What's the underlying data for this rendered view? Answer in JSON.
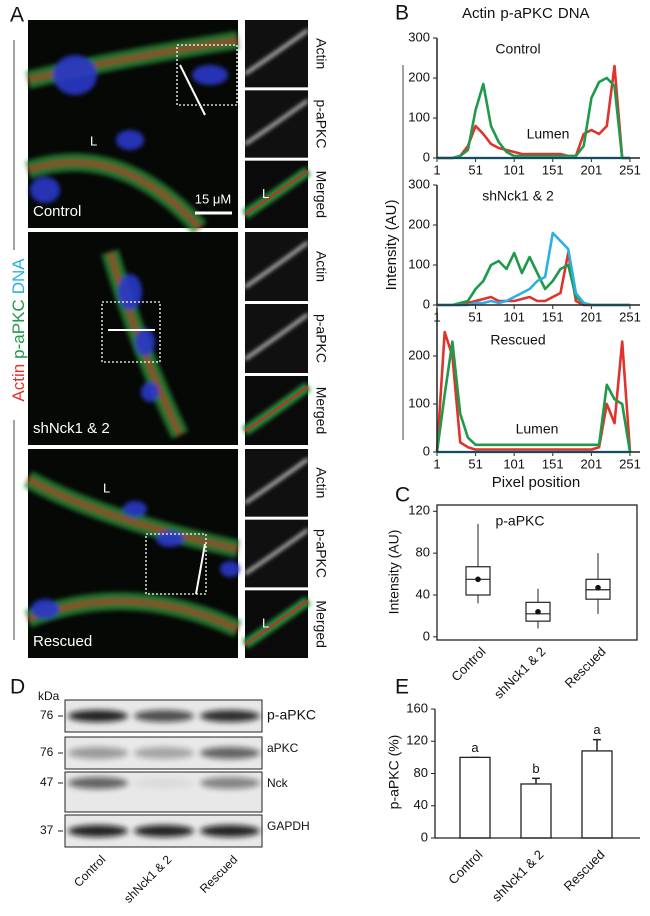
{
  "panel_labels": [
    "A",
    "B",
    "C",
    "D",
    "E"
  ],
  "micrographs": {
    "legend": [
      "Actin",
      "p-aPKC",
      "DNA"
    ],
    "rows": [
      {
        "condition": "Control",
        "lumen": "L",
        "scale_bar": "15 μM",
        "channels": [
          "Actin",
          "p-aPKC",
          "Merged"
        ],
        "inset_lumen": "L"
      },
      {
        "condition": "shNck1 & 2",
        "channels": [
          "Actin",
          "p-aPKC",
          "Merged"
        ]
      },
      {
        "condition": "Rescued",
        "lumen": "L",
        "channels": [
          "Actin",
          "p-aPKC",
          "Merged"
        ],
        "inset_lumen": "L"
      }
    ]
  },
  "blot": {
    "unit": "kDa",
    "rows": [
      {
        "mw": "76",
        "label": "p-aPKC"
      },
      {
        "mw": "76",
        "label": "aPKC"
      },
      {
        "mw": "47",
        "label": "Nck"
      },
      {
        "mw": "37",
        "label": "GAPDH"
      }
    ],
    "lanes": [
      "Control",
      "shNck1 & 2",
      "Rescued"
    ]
  },
  "chart_data": [
    {
      "type": "line",
      "title": "Control",
      "annotation": "Lumen",
      "x": [
        1,
        11,
        21,
        31,
        41,
        51,
        61,
        71,
        81,
        91,
        101,
        111,
        121,
        131,
        141,
        151,
        161,
        171,
        181,
        191,
        201,
        211,
        221,
        231,
        241,
        251
      ],
      "xlim": [
        1,
        264
      ],
      "xticks": [
        1,
        51,
        101,
        151,
        201,
        251
      ],
      "ylim": [
        0,
        300
      ],
      "yticks": [
        0,
        100,
        200,
        300
      ],
      "series": [
        {
          "name": "Actin",
          "color": "#e0332e",
          "values": [
            0,
            0,
            0,
            5,
            30,
            80,
            60,
            35,
            25,
            20,
            15,
            10,
            10,
            10,
            10,
            10,
            10,
            5,
            5,
            60,
            70,
            60,
            80,
            230,
            0,
            0
          ]
        },
        {
          "name": "p-aPKC",
          "color": "#1e9a4a",
          "values": [
            0,
            0,
            0,
            5,
            20,
            120,
            185,
            80,
            40,
            15,
            5,
            5,
            5,
            5,
            5,
            5,
            5,
            5,
            5,
            30,
            150,
            190,
            200,
            180,
            0,
            0
          ]
        },
        {
          "name": "DNA",
          "color": "#2ab0e4",
          "values": [
            0,
            0,
            0,
            0,
            0,
            0,
            0,
            0,
            0,
            0,
            0,
            0,
            0,
            0,
            0,
            0,
            0,
            0,
            0,
            0,
            0,
            0,
            0,
            0,
            0,
            0
          ]
        }
      ]
    },
    {
      "type": "line",
      "title": "shNck1 & 2",
      "ylabel": "Intensity (AU)",
      "x": [
        1,
        11,
        21,
        31,
        41,
        51,
        61,
        71,
        81,
        91,
        101,
        111,
        121,
        131,
        141,
        151,
        161,
        171,
        181,
        191,
        201,
        211,
        221,
        231,
        241,
        251
      ],
      "xlim": [
        1,
        264
      ],
      "xticks": [
        1,
        51,
        101,
        151,
        201,
        251
      ],
      "ylim": [
        0,
        300
      ],
      "yticks": [
        0,
        100,
        200,
        300
      ],
      "series": [
        {
          "name": "Actin",
          "color": "#e0332e",
          "values": [
            0,
            0,
            0,
            0,
            5,
            10,
            15,
            20,
            10,
            10,
            10,
            15,
            20,
            10,
            10,
            20,
            30,
            130,
            10,
            0,
            0,
            0,
            0,
            0,
            0,
            0
          ]
        },
        {
          "name": "p-aPKC",
          "color": "#1e9a4a",
          "values": [
            0,
            0,
            0,
            5,
            10,
            40,
            60,
            100,
            110,
            90,
            130,
            80,
            120,
            80,
            40,
            60,
            90,
            100,
            20,
            5,
            0,
            0,
            0,
            0,
            0,
            0
          ]
        },
        {
          "name": "DNA",
          "color": "#2ab0e4",
          "values": [
            0,
            0,
            0,
            0,
            0,
            5,
            5,
            10,
            5,
            10,
            20,
            30,
            40,
            60,
            70,
            180,
            160,
            140,
            30,
            5,
            0,
            0,
            0,
            0,
            0,
            0
          ]
        }
      ]
    },
    {
      "type": "line",
      "title": "Rescued",
      "annotation": "Lumen",
      "xlabel": "Pixel position",
      "x": [
        1,
        11,
        21,
        31,
        41,
        51,
        61,
        71,
        81,
        91,
        101,
        111,
        121,
        131,
        141,
        151,
        161,
        171,
        181,
        191,
        201,
        211,
        221,
        231,
        241,
        251
      ],
      "xlim": [
        1,
        264
      ],
      "xticks": [
        1,
        51,
        101,
        151,
        201,
        251
      ],
      "ylim": [
        0,
        300
      ],
      "yticks": [
        0,
        100,
        200
      ],
      "series": [
        {
          "name": "Actin",
          "color": "#e0332e",
          "values": [
            0,
            250,
            200,
            20,
            10,
            5,
            5,
            5,
            5,
            5,
            5,
            5,
            5,
            5,
            5,
            5,
            5,
            5,
            5,
            5,
            5,
            10,
            100,
            60,
            230,
            0
          ]
        },
        {
          "name": "p-aPKC",
          "color": "#1e9a4a",
          "values": [
            0,
            120,
            230,
            80,
            30,
            15,
            15,
            15,
            15,
            15,
            15,
            15,
            15,
            15,
            15,
            15,
            15,
            15,
            15,
            15,
            15,
            15,
            140,
            110,
            100,
            0
          ]
        },
        {
          "name": "DNA",
          "color": "#2ab0e4",
          "values": [
            0,
            0,
            0,
            0,
            0,
            0,
            0,
            0,
            0,
            0,
            0,
            0,
            0,
            0,
            0,
            0,
            0,
            0,
            0,
            0,
            0,
            0,
            0,
            0,
            0,
            0
          ]
        }
      ]
    },
    {
      "type": "box",
      "title": "p-aPKC",
      "ylabel": "Intensity (AU)",
      "categories": [
        "Control",
        "shNck1 & 2",
        "Rescued"
      ],
      "boxes": [
        {
          "low": 32,
          "q1": 40,
          "median": 55,
          "q3": 67,
          "high": 108,
          "mean": 55
        },
        {
          "low": 8,
          "q1": 15,
          "median": 22,
          "q3": 33,
          "high": 46,
          "mean": 24
        },
        {
          "low": 22,
          "q1": 36,
          "median": 45,
          "q3": 55,
          "high": 80,
          "mean": 47
        }
      ],
      "ylim": [
        -3,
        126
      ],
      "yticks": [
        0,
        40,
        80,
        120
      ]
    },
    {
      "type": "bar",
      "ylabel": "p-aPKC (%)",
      "categories": [
        "Control",
        "shNck1 & 2",
        "Rescued"
      ],
      "values": [
        100,
        67,
        108
      ],
      "errors": [
        0,
        7,
        14
      ],
      "letters": [
        "a",
        "b",
        "a"
      ],
      "color": "#ffffff",
      "ylim": [
        0,
        160
      ],
      "yticks": [
        0,
        40,
        80,
        120,
        160
      ]
    }
  ]
}
